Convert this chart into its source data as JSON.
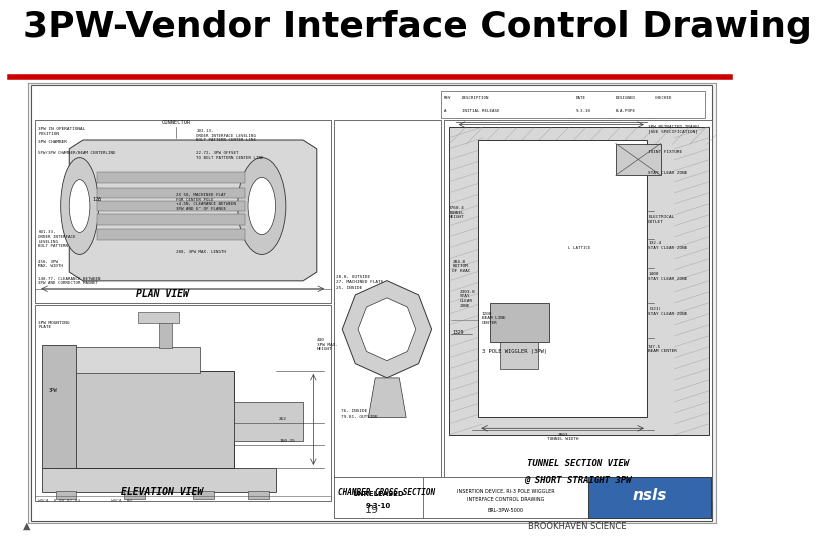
{
  "title": "3PW-Vendor Interface Control Drawing",
  "title_fontsize": 26,
  "title_fontweight": "bold",
  "title_color": "#000000",
  "red_line_color": "#cc0000",
  "red_line_linewidth": 4,
  "bg_color": "#ffffff",
  "drawing_bg": "#ffffff",
  "drawing_border": "#888888",
  "footer_text": "BROOKHAVEN SCIENCE",
  "slide_bg": "#cccccc"
}
